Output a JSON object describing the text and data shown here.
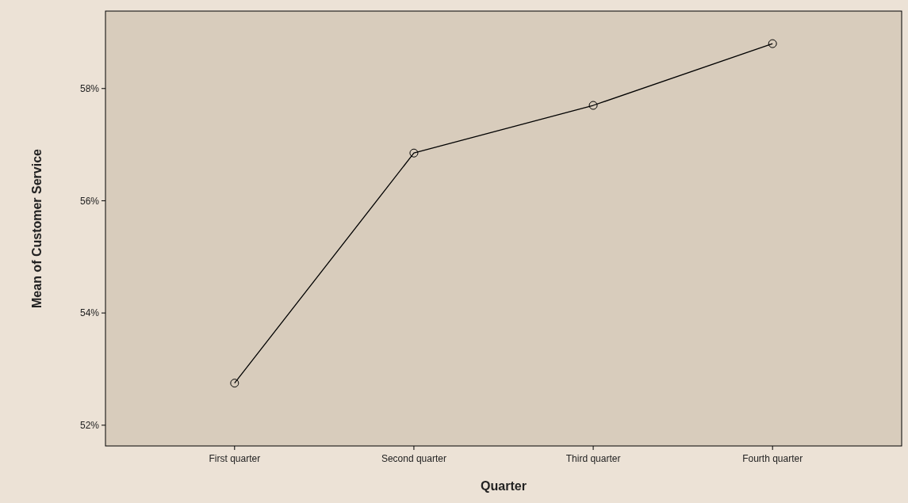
{
  "chart_data": {
    "type": "line",
    "xlabel": "Quarter",
    "ylabel": "Mean of Customer Service",
    "categories": [
      "First quarter",
      "Second quarter",
      "Third quarter",
      "Fourth quarter"
    ],
    "series": [
      {
        "color": "#000000",
        "values": [
          52.75,
          56.85,
          57.7,
          58.8
        ]
      }
    ],
    "ylim": [
      51.63,
      59.38
    ],
    "yticks": [
      {
        "value": 52,
        "label": "52%"
      },
      {
        "value": 54,
        "label": "54%"
      },
      {
        "value": 56,
        "label": "56%"
      },
      {
        "value": 58,
        "label": "58%"
      }
    ],
    "grid": false,
    "marker": "circle",
    "line_style": "solid"
  }
}
